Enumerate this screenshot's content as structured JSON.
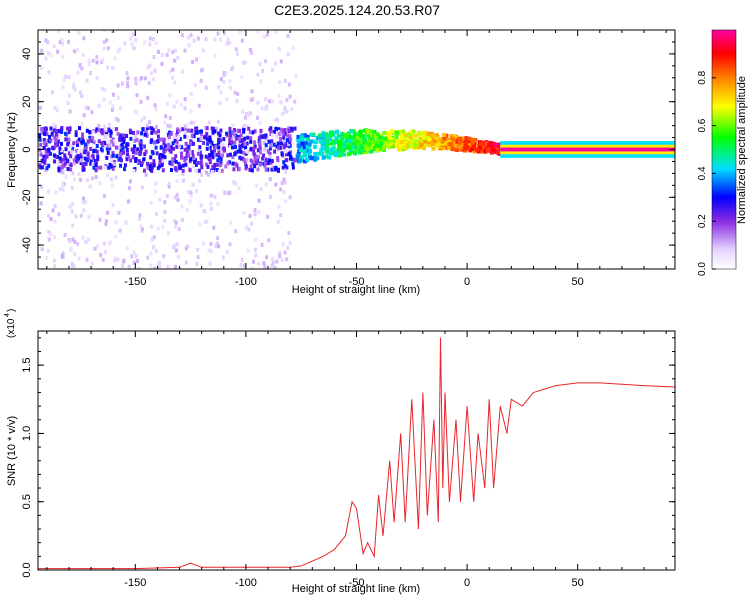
{
  "title": "C2E3.2025.124.20.53.R07",
  "colorbar": {
    "label": "Normalized spectral amplitude",
    "ticks": [
      "0.0",
      "0.2",
      "0.4",
      "0.6",
      "0.8"
    ],
    "range": [
      0,
      1
    ]
  },
  "chart_data": [
    {
      "type": "heatmap",
      "xlabel": "Height of straight line (km)",
      "ylabel": "Frequency (Hz)",
      "xlim": [
        -194,
        94
      ],
      "ylim": [
        -50,
        50
      ],
      "xticks": [
        -150,
        -100,
        -50,
        0,
        50
      ],
      "yticks": [
        -40,
        -20,
        0,
        20,
        40
      ],
      "description_regions": [
        {
          "x": [
            -194,
            -78
          ],
          "freq_spread": 50,
          "core_spread": 9,
          "amplitude": 0.15
        },
        {
          "x": [
            -78,
            15
          ],
          "freq_center_range": [
            0,
            6
          ],
          "amplitude_range": [
            0.35,
            1.0
          ]
        },
        {
          "x": [
            15,
            94
          ],
          "freq_center": 0,
          "amplitude": 1.0
        }
      ]
    },
    {
      "type": "line",
      "xlabel": "Height of straight line (km)",
      "ylabel": "SNR (10 * v/v)",
      "y_scale_label": "(x10",
      "y_scale_exp": "4",
      "xlim": [
        -194,
        94
      ],
      "ylim": [
        0,
        1.75
      ],
      "xticks": [
        -150,
        -100,
        -50,
        0,
        50
      ],
      "yticks": [
        "0.0",
        "0.5",
        "1.0",
        "1.5"
      ],
      "series": [
        {
          "color": "#e8262b",
          "x": [
            -194,
            -150,
            -130,
            -125,
            -120,
            -100,
            -80,
            -75,
            -65,
            -60,
            -55,
            -52,
            -50,
            -47,
            -45,
            -42,
            -40,
            -38,
            -35,
            -33,
            -30,
            -28,
            -25,
            -22,
            -20,
            -18,
            -15,
            -13,
            -12,
            -11,
            -10,
            -8,
            -5,
            -3,
            0,
            3,
            5,
            8,
            10,
            12,
            15,
            18,
            20,
            25,
            30,
            40,
            50,
            60,
            70,
            80,
            94
          ],
          "values": [
            0.01,
            0.01,
            0.02,
            0.05,
            0.02,
            0.02,
            0.02,
            0.03,
            0.1,
            0.15,
            0.25,
            0.5,
            0.45,
            0.12,
            0.2,
            0.1,
            0.55,
            0.25,
            0.8,
            0.35,
            1.0,
            0.35,
            1.25,
            0.3,
            1.3,
            0.4,
            1.1,
            0.35,
            1.7,
            0.6,
            1.3,
            0.5,
            1.1,
            0.5,
            1.2,
            0.5,
            1.0,
            0.6,
            1.25,
            0.6,
            1.2,
            1.0,
            1.25,
            1.2,
            1.3,
            1.35,
            1.37,
            1.37,
            1.36,
            1.35,
            1.34
          ]
        }
      ]
    }
  ]
}
